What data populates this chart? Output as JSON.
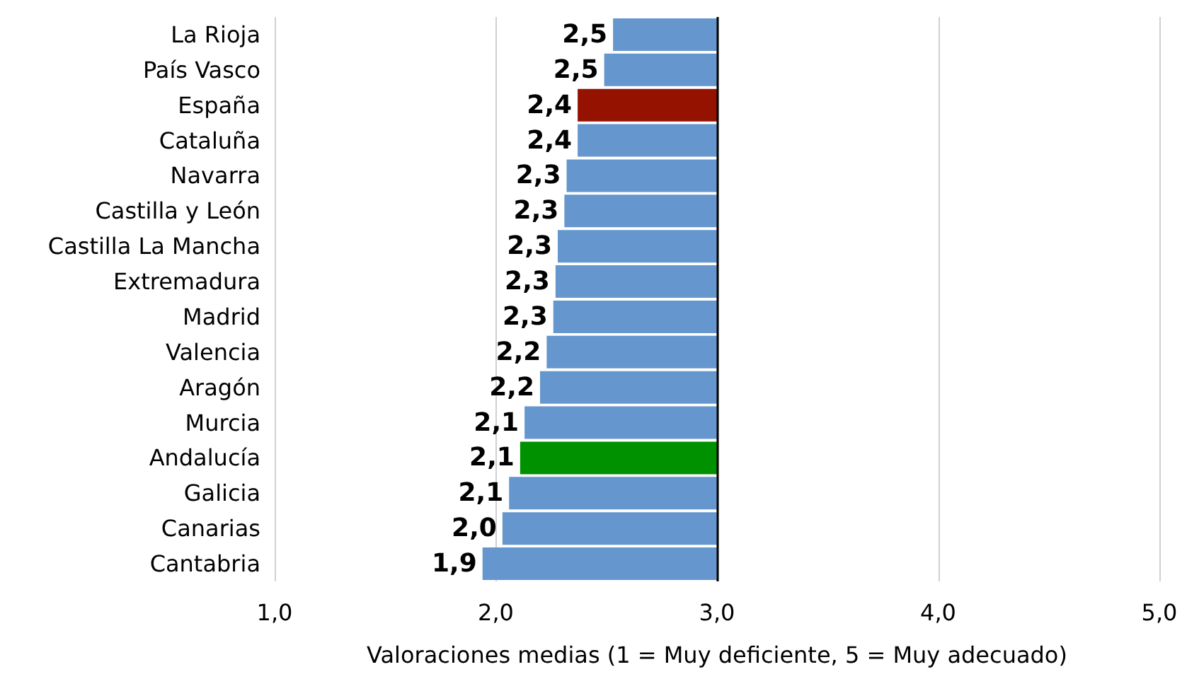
{
  "chart_data": {
    "type": "bar",
    "orientation": "horizontal",
    "categories": [
      "La Rioja",
      "País Vasco",
      "España",
      "Cataluña",
      "Navarra",
      "Castilla y León",
      "Castilla La Mancha",
      "Extremadura",
      "Madrid",
      "Valencia",
      "Aragón",
      "Murcia",
      "Andalucía",
      "Galicia",
      "Canarias",
      "Cantabria"
    ],
    "base": [
      3,
      3,
      3,
      3,
      3,
      3,
      3,
      3,
      3,
      3,
      3,
      3,
      3,
      3,
      3,
      3
    ],
    "values": [
      -0.47,
      -0.51,
      -0.63,
      -0.63,
      -0.68,
      -0.69,
      -0.72,
      -0.73,
      -0.74,
      -0.77,
      -0.8,
      -0.87,
      -0.89,
      -0.94,
      -0.97,
      -1.06
    ],
    "colors": [
      "#6596cd",
      "#6596cd",
      "#951200",
      "#6596cd",
      "#6596cd",
      "#6596cd",
      "#6596cd",
      "#6596cd",
      "#6596cd",
      "#6596cd",
      "#6596cd",
      "#6596cd",
      "#009100",
      "#6596cd",
      "#6596cd",
      "#6596cd"
    ],
    "value_labels": [
      "2,5",
      "2,5",
      "2,4",
      "2,4",
      "2,3",
      "2,3",
      "2,3",
      "2,3",
      "2,3",
      "2,2",
      "2,2",
      "2,1",
      "2,1",
      "2,1",
      "2,0",
      "1,9"
    ],
    "xlim": [
      1,
      5
    ],
    "xticks": [
      {
        "value": 1,
        "label": "1,0"
      },
      {
        "value": 2,
        "label": "2,0"
      },
      {
        "value": 3,
        "label": "3,0"
      },
      {
        "value": 4,
        "label": "4,0"
      },
      {
        "value": 5,
        "label": "5,0"
      }
    ],
    "xlabel": "Valoraciones medias (1 = Muy deficiente, 5 = Muy adecuado)",
    "grid": "x",
    "ref_lines": [
      {
        "axis": "x",
        "value": 3,
        "label": null,
        "color": "#000000"
      }
    ]
  }
}
